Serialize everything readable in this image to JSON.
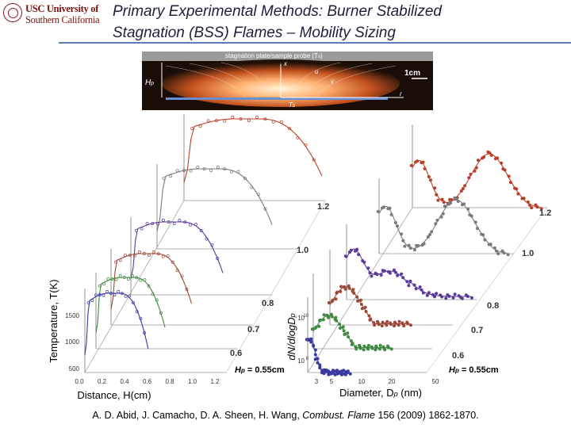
{
  "header": {
    "logo_line1": "USC University of",
    "logo_line2": "Southern California",
    "title_line1": "Primary Experimental Methods: Burner Stabilized",
    "title_line2": "Stagnation (BSS) Flames – Mobility Sizing"
  },
  "photo": {
    "plate_label": "stagnation plate/sample probe (T",
    "plate_label_sub": "s",
    "plate_label_end": ")",
    "hp": "H",
    "hp_sub": "p",
    "x_label": "x",
    "u_label": "u",
    "v_label": "v",
    "r_label": "r",
    "tb_label": "T",
    "tb_sub": "b",
    "scale_label": "1cm"
  },
  "colors": {
    "h055": "#3a3aa0",
    "h06": "#3f8a3f",
    "h07": "#9a4a3a",
    "h08": "#5a3a9a",
    "h10": "#7a7a7a",
    "h12": "#b8402a"
  },
  "left_panel": {
    "ylabel": "Temperature, T(K)",
    "xlabel": "Distance, H(cm)",
    "y_ticks": [
      "1500",
      "1000",
      "500"
    ],
    "x_ticks": [
      "0.0",
      "0.2",
      "0.4",
      "0.6",
      "0.8",
      "1.0",
      "1.2"
    ],
    "depth_labels": [
      "1.2",
      "1.0",
      "0.8",
      "0.7",
      "0.6"
    ],
    "front_label": "H",
    "front_label_sub": "p",
    "front_label_value": " = 0.55cm"
  },
  "right_panel": {
    "ylabel": "dN/dlogD",
    "ylabel_sub": "p",
    "xlabel": "Diameter, D",
    "xlabel_sub": "p",
    "xlabel_unit": " (nm)",
    "y_ticks": [
      "10",
      "10"
    ],
    "y_ticks_exp": [
      "10",
      "8"
    ],
    "x_ticks": [
      "3",
      "5",
      "10",
      "20",
      "50"
    ],
    "depth_labels": [
      "1.2",
      "1.0",
      "0.8",
      "0.7",
      "0.6"
    ],
    "front_label": "H",
    "front_label_sub": "p",
    "front_label_value": " = 0.55cm"
  },
  "citation": {
    "authors": "A. D. Abid, J. Camacho, D. A. Sheen, H. Wang, ",
    "journal": "Combust. Flame",
    "ref": " 156 (2009) 1862-1870."
  }
}
